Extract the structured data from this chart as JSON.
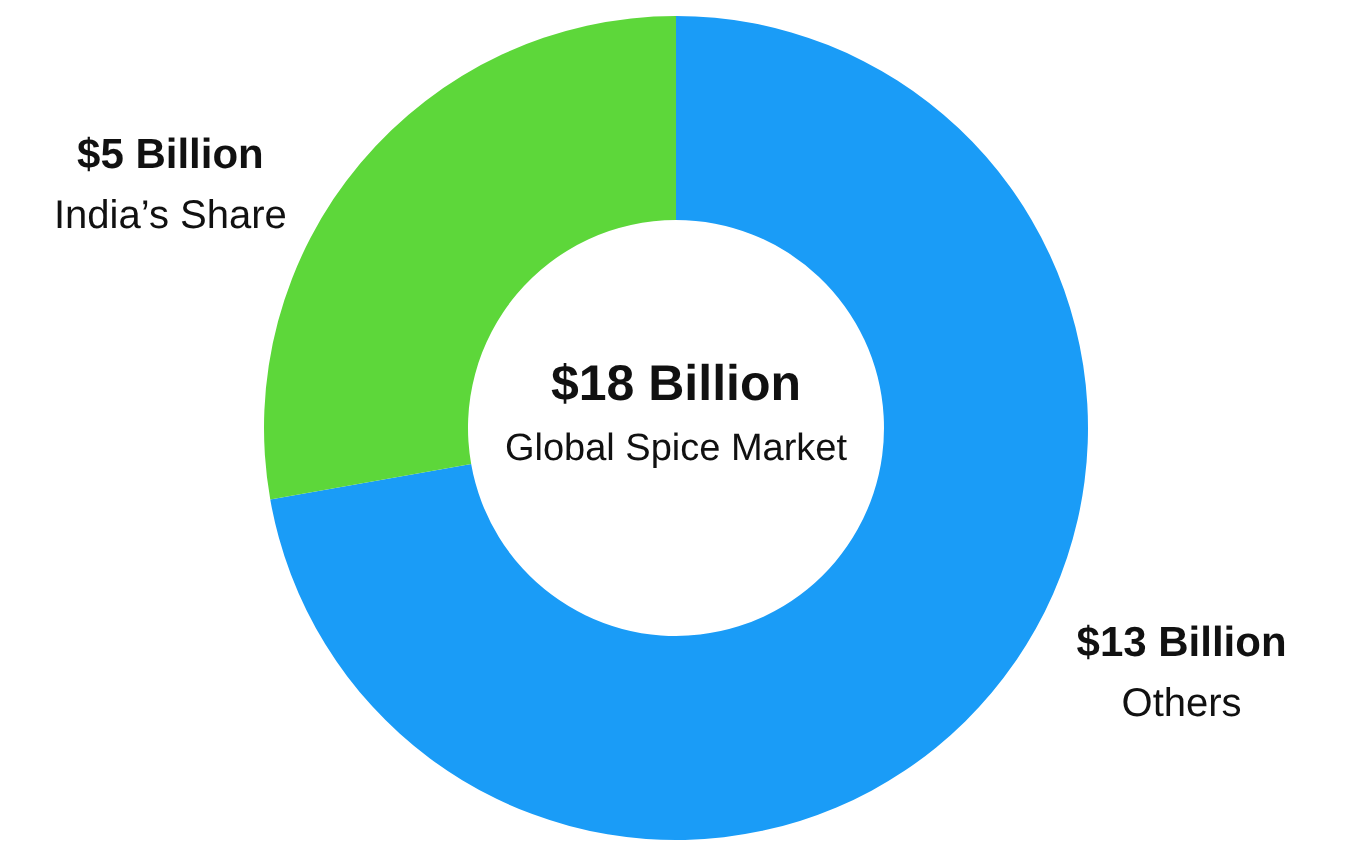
{
  "chart_data": {
    "type": "donut",
    "title": "$18 Billion",
    "subtitle": "Global Spice Market",
    "categories": [
      "Others",
      "India’s Share"
    ],
    "values": [
      13,
      5
    ],
    "colors": [
      "#1a9cf7",
      "#5dd73a"
    ],
    "value_labels": [
      "$13 Billion",
      "$5 Billion"
    ]
  }
}
